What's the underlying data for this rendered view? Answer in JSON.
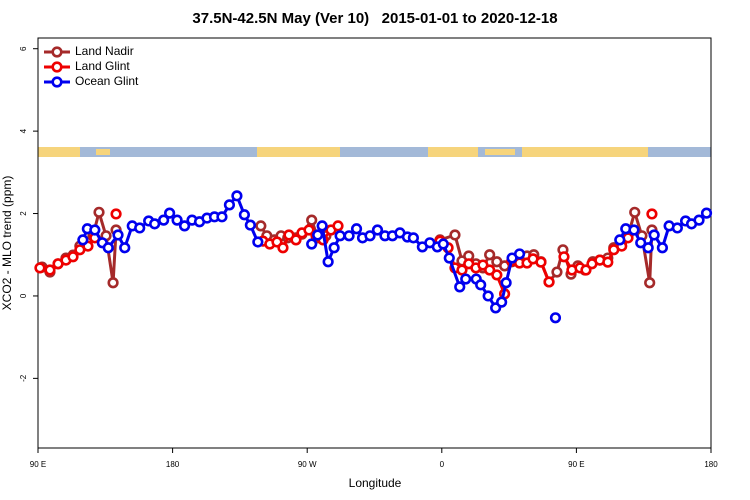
{
  "chart_data": {
    "type": "line",
    "title": "37.5N-42.5N May (Ver 10)   2015-01-01 to 2020-12-18",
    "x_label": "Longitude",
    "y_label": "XCO2 - MLO trend (ppm)",
    "xlim": [
      90,
      540
    ],
    "ylim": [
      -3.69,
      6.26
    ],
    "xticks": [
      {
        "value": 90,
        "label": "90 E"
      },
      {
        "value": 180,
        "label": "180"
      },
      {
        "value": 270,
        "label": "90 W"
      },
      {
        "value": 360,
        "label": "0"
      },
      {
        "value": 450,
        "label": "90 E"
      },
      {
        "value": 540,
        "label": "180"
      }
    ],
    "yticks": [
      -2,
      0,
      2,
      4,
      6
    ],
    "legend": "top-left",
    "series": [
      {
        "name": "Land Nadir",
        "color": "#a52a2a",
        "x": [
          92.7,
          98,
          103.4,
          108.7,
          113.4,
          118,
          122.8,
          126.8,
          130.8,
          135.5,
          140.2,
          142.2,
          null,
          239,
          243,
          248,
          252.5,
          257,
          262.5,
          266.5,
          273,
          277,
          282.5,
          null,
          358.8,
          368.8,
          373.5,
          378,
          382.8,
          387.5,
          392,
          396.8,
          402,
          406.8,
          412,
          417,
          421.5,
          426.3,
          431.7,
          437,
          441,
          446.4,
          451,
          455.7,
          461,
          465.7,
          471,
          475,
          480.3,
          484.5,
          489,
          493.8,
          499,
          500.5
        ],
        "values": [
          0.7,
          0.58,
          0.78,
          0.92,
          0.99,
          1.21,
          1.31,
          1.46,
          2.03,
          1.46,
          0.32,
          1.6,
          null,
          1.7,
          1.46,
          1.36,
          1.46,
          1.41,
          1.41,
          1.5,
          1.84,
          1.41,
          1.46,
          null,
          1.36,
          1.48,
          0.85,
          0.97,
          0.78,
          0.68,
          1.0,
          0.83,
          0.73,
          0.83,
          0.92,
          0.97,
          1.0,
          0.83,
          0.34,
          0.58,
          1.12,
          0.53,
          0.73,
          0.63,
          0.83,
          0.87,
          0.92,
          1.17,
          1.31,
          1.46,
          2.03,
          1.46,
          0.32,
          1.6
        ]
      },
      {
        "name": "Land Glint",
        "color": "#ee0000",
        "x": [
          91.3,
          98,
          103.4,
          108.7,
          113.4,
          118,
          123.4,
          128,
          null,
          142.2,
          null,
          240.4,
          245,
          249.8,
          253.8,
          257.8,
          262.5,
          266.5,
          271.2,
          275.9,
          280.6,
          285.9,
          290.6,
          null,
          358.8,
          364.2,
          368.8,
          373.5,
          378,
          382.8,
          387.5,
          392,
          396.8,
          402,
          null,
          406.8,
          412,
          417,
          421,
          426.3,
          431.7,
          null,
          441.7,
          447,
          452.4,
          456.4,
          460.4,
          465.7,
          471,
          475,
          480.3,
          484.5,
          null,
          500.5
        ],
        "values": [
          0.68,
          0.63,
          0.78,
          0.87,
          0.95,
          1.12,
          1.21,
          1.41,
          null,
          1.99,
          null,
          1.33,
          1.26,
          1.31,
          1.17,
          1.48,
          1.36,
          1.53,
          1.6,
          1.46,
          1.36,
          1.6,
          1.7,
          null,
          1.33,
          1.17,
          0.68,
          0.63,
          0.78,
          0.68,
          0.75,
          0.63,
          0.51,
          0.05,
          null,
          0.85,
          0.8,
          0.8,
          0.9,
          0.82,
          0.34,
          null,
          0.95,
          0.63,
          0.68,
          0.63,
          0.78,
          0.87,
          0.82,
          1.12,
          1.21,
          1.41,
          null,
          1.99
        ]
      },
      {
        "name": "Ocean Glint",
        "color": "#0000ee",
        "x": [
          120,
          123,
          128,
          133,
          137,
          143.5,
          148,
          153,
          158,
          164,
          168,
          174,
          178,
          183,
          188,
          193,
          198,
          203,
          208,
          213,
          218,
          223,
          228,
          232,
          237,
          null,
          273,
          277,
          280,
          284,
          288,
          292,
          298,
          303,
          307,
          312,
          317,
          322,
          327,
          332,
          337,
          341,
          347,
          352,
          357,
          361,
          365,
          372,
          376,
          383,
          386,
          391,
          396,
          400,
          403,
          407,
          412,
          null,
          436,
          null,
          479,
          483,
          488.5,
          493,
          498,
          502,
          507.5,
          512,
          517.5,
          523,
          527,
          532,
          537
        ],
        "values": [
          1.36,
          1.63,
          1.6,
          1.29,
          1.17,
          1.48,
          1.17,
          1.7,
          1.65,
          1.82,
          1.75,
          1.84,
          2.01,
          1.84,
          1.7,
          1.84,
          1.8,
          1.89,
          1.92,
          1.92,
          2.21,
          2.43,
          1.97,
          1.72,
          1.31,
          null,
          1.26,
          1.48,
          1.7,
          0.83,
          1.17,
          1.46,
          1.46,
          1.63,
          1.41,
          1.46,
          1.6,
          1.46,
          1.46,
          1.53,
          1.43,
          1.41,
          1.19,
          1.29,
          1.19,
          1.26,
          0.92,
          0.22,
          0.41,
          0.41,
          0.27,
          0.0,
          -0.29,
          -0.15,
          0.32,
          0.92,
          1.02,
          null,
          -0.53,
          null,
          1.36,
          1.63,
          1.6,
          1.29,
          1.17,
          1.48,
          1.17,
          1.7,
          1.65,
          1.82,
          1.75,
          1.84,
          2.01
        ]
      }
    ]
  }
}
